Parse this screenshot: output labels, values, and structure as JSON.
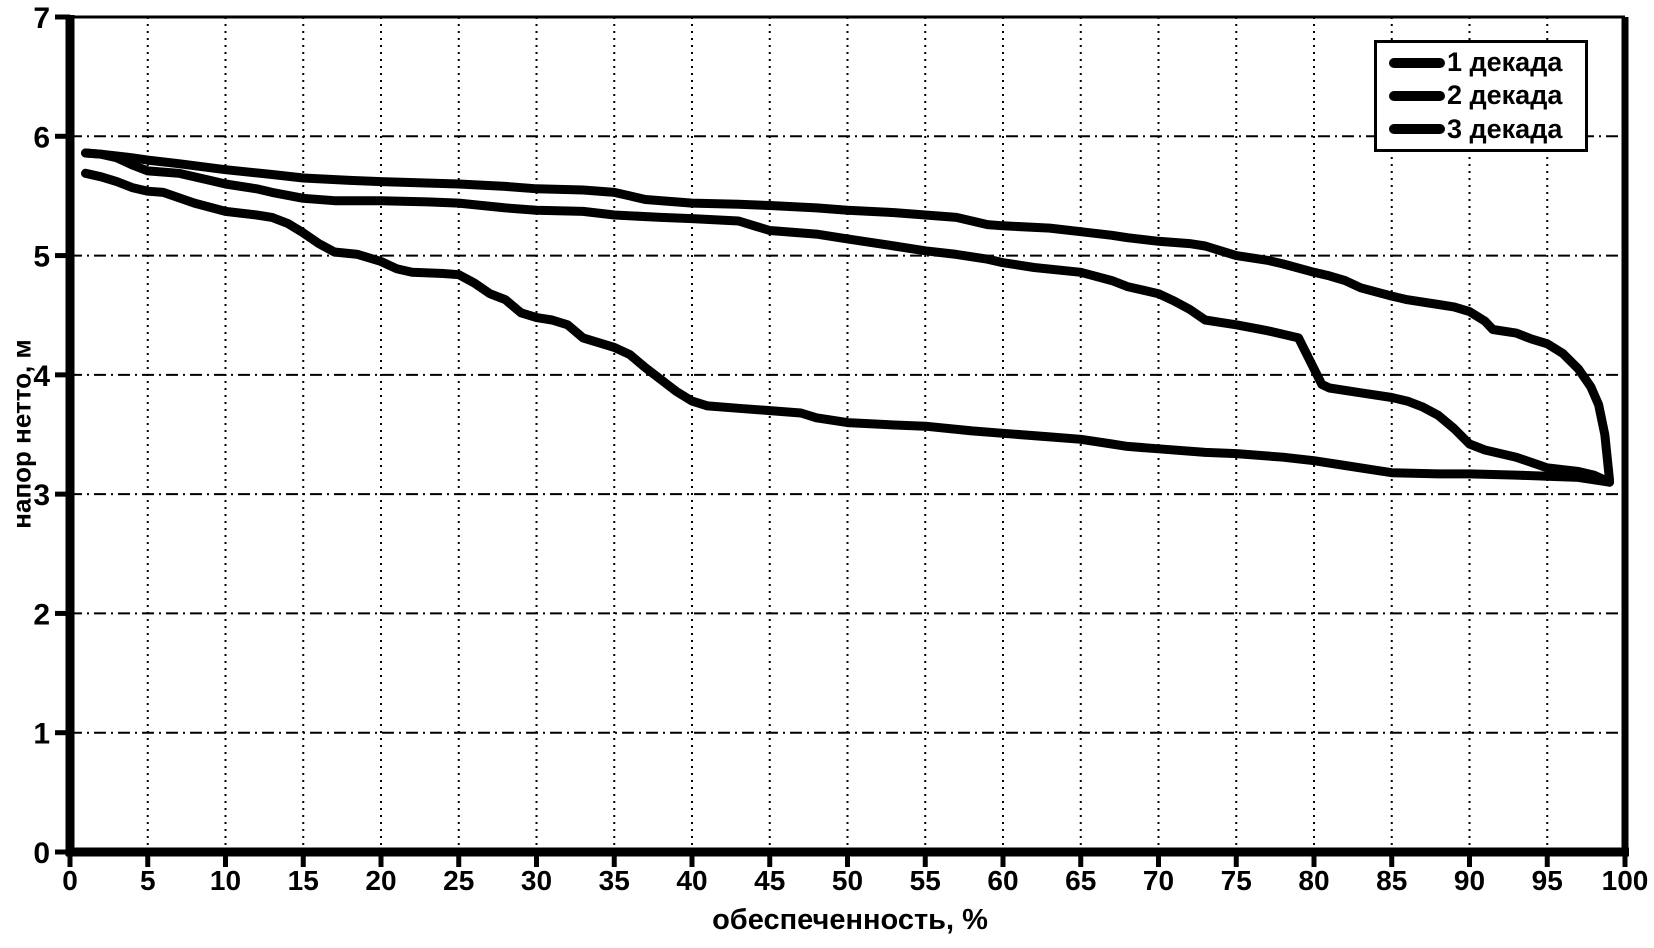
{
  "chart_data": {
    "type": "line",
    "title": "",
    "xlabel": "обеспеченность, %",
    "ylabel": "напор нетто, м",
    "xlim": [
      0,
      100
    ],
    "ylim": [
      0,
      7
    ],
    "xticks": [
      0,
      5,
      10,
      15,
      20,
      25,
      30,
      35,
      40,
      45,
      50,
      55,
      60,
      65,
      70,
      75,
      80,
      85,
      90,
      95,
      100
    ],
    "yticks": [
      0,
      1,
      2,
      3,
      4,
      5,
      6,
      7
    ],
    "grid": true,
    "legend_position": "top-right",
    "line_color": "#000000",
    "background": "#ffffff",
    "series": [
      {
        "name": "1 декада",
        "points": [
          [
            1,
            5.86
          ],
          [
            2,
            5.85
          ],
          [
            4,
            5.82
          ],
          [
            5,
            5.8
          ],
          [
            7,
            5.77
          ],
          [
            10,
            5.72
          ],
          [
            13,
            5.68
          ],
          [
            15,
            5.65
          ],
          [
            18,
            5.63
          ],
          [
            20,
            5.62
          ],
          [
            25,
            5.6
          ],
          [
            28,
            5.58
          ],
          [
            30,
            5.56
          ],
          [
            33,
            5.55
          ],
          [
            35,
            5.53
          ],
          [
            36,
            5.5
          ],
          [
            37,
            5.47
          ],
          [
            40,
            5.44
          ],
          [
            43,
            5.43
          ],
          [
            45,
            5.42
          ],
          [
            48,
            5.4
          ],
          [
            50,
            5.38
          ],
          [
            53,
            5.36
          ],
          [
            55,
            5.34
          ],
          [
            57,
            5.32
          ],
          [
            59,
            5.26
          ],
          [
            60,
            5.25
          ],
          [
            63,
            5.23
          ],
          [
            65,
            5.2
          ],
          [
            67,
            5.17
          ],
          [
            68,
            5.15
          ],
          [
            70,
            5.12
          ],
          [
            72,
            5.1
          ],
          [
            73,
            5.08
          ],
          [
            74,
            5.04
          ],
          [
            75,
            5.0
          ],
          [
            77,
            4.96
          ],
          [
            78,
            4.93
          ],
          [
            80,
            4.86
          ],
          [
            81,
            4.83
          ],
          [
            82,
            4.79
          ],
          [
            83,
            4.73
          ],
          [
            85,
            4.66
          ],
          [
            86,
            4.63
          ],
          [
            88,
            4.59
          ],
          [
            89,
            4.57
          ],
          [
            90,
            4.53
          ],
          [
            91,
            4.45
          ],
          [
            91.5,
            4.38
          ],
          [
            93,
            4.35
          ],
          [
            94,
            4.3
          ],
          [
            95,
            4.26
          ],
          [
            96,
            4.18
          ],
          [
            97,
            4.05
          ],
          [
            97.8,
            3.9
          ],
          [
            98.3,
            3.75
          ],
          [
            98.7,
            3.5
          ],
          [
            99,
            3.12
          ]
        ]
      },
      {
        "name": "2 декада",
        "points": [
          [
            1,
            5.86
          ],
          [
            2,
            5.85
          ],
          [
            3,
            5.82
          ],
          [
            4,
            5.76
          ],
          [
            5,
            5.71
          ],
          [
            7,
            5.69
          ],
          [
            9,
            5.63
          ],
          [
            10,
            5.6
          ],
          [
            12,
            5.56
          ],
          [
            13,
            5.53
          ],
          [
            15,
            5.48
          ],
          [
            17,
            5.46
          ],
          [
            20,
            5.46
          ],
          [
            23,
            5.45
          ],
          [
            25,
            5.44
          ],
          [
            28,
            5.4
          ],
          [
            30,
            5.38
          ],
          [
            33,
            5.37
          ],
          [
            35,
            5.34
          ],
          [
            38,
            5.32
          ],
          [
            40,
            5.31
          ],
          [
            43,
            5.29
          ],
          [
            44,
            5.25
          ],
          [
            45,
            5.21
          ],
          [
            48,
            5.18
          ],
          [
            50,
            5.14
          ],
          [
            53,
            5.08
          ],
          [
            55,
            5.04
          ],
          [
            57,
            5.01
          ],
          [
            59,
            4.97
          ],
          [
            60,
            4.94
          ],
          [
            62,
            4.9
          ],
          [
            65,
            4.86
          ],
          [
            67,
            4.79
          ],
          [
            68,
            4.74
          ],
          [
            70,
            4.68
          ],
          [
            71,
            4.62
          ],
          [
            72,
            4.55
          ],
          [
            73,
            4.46
          ],
          [
            74,
            4.44
          ],
          [
            75,
            4.42
          ],
          [
            77,
            4.37
          ],
          [
            78,
            4.34
          ],
          [
            79,
            4.31
          ],
          [
            80.5,
            3.92
          ],
          [
            81,
            3.89
          ],
          [
            83,
            3.85
          ],
          [
            85,
            3.81
          ],
          [
            86,
            3.78
          ],
          [
            87,
            3.73
          ],
          [
            88,
            3.66
          ],
          [
            89,
            3.55
          ],
          [
            90,
            3.42
          ],
          [
            91,
            3.37
          ],
          [
            93,
            3.31
          ],
          [
            95,
            3.22
          ],
          [
            97,
            3.19
          ],
          [
            98,
            3.16
          ],
          [
            99,
            3.1
          ]
        ]
      },
      {
        "name": "3 декада",
        "points": [
          [
            1,
            5.69
          ],
          [
            2,
            5.66
          ],
          [
            3,
            5.62
          ],
          [
            4,
            5.57
          ],
          [
            5,
            5.54
          ],
          [
            6,
            5.53
          ],
          [
            8,
            5.44
          ],
          [
            10,
            5.37
          ],
          [
            12,
            5.34
          ],
          [
            13,
            5.32
          ],
          [
            14,
            5.27
          ],
          [
            15,
            5.19
          ],
          [
            16,
            5.1
          ],
          [
            17,
            5.03
          ],
          [
            18.5,
            5.01
          ],
          [
            20,
            4.95
          ],
          [
            21,
            4.89
          ],
          [
            22,
            4.86
          ],
          [
            24,
            4.85
          ],
          [
            25,
            4.84
          ],
          [
            26,
            4.77
          ],
          [
            27,
            4.68
          ],
          [
            28,
            4.63
          ],
          [
            29,
            4.52
          ],
          [
            30,
            4.48
          ],
          [
            31,
            4.46
          ],
          [
            32,
            4.42
          ],
          [
            33,
            4.31
          ],
          [
            34,
            4.27
          ],
          [
            35,
            4.23
          ],
          [
            36,
            4.17
          ],
          [
            37,
            4.06
          ],
          [
            38,
            3.96
          ],
          [
            39,
            3.86
          ],
          [
            40,
            3.78
          ],
          [
            41,
            3.74
          ],
          [
            43,
            3.72
          ],
          [
            45,
            3.7
          ],
          [
            47,
            3.68
          ],
          [
            48,
            3.64
          ],
          [
            50,
            3.6
          ],
          [
            53,
            3.58
          ],
          [
            55,
            3.57
          ],
          [
            58,
            3.53
          ],
          [
            60,
            3.51
          ],
          [
            63,
            3.48
          ],
          [
            65,
            3.46
          ],
          [
            67,
            3.42
          ],
          [
            68,
            3.4
          ],
          [
            70,
            3.38
          ],
          [
            73,
            3.35
          ],
          [
            75,
            3.34
          ],
          [
            78,
            3.31
          ],
          [
            80,
            3.28
          ],
          [
            82,
            3.24
          ],
          [
            84,
            3.2
          ],
          [
            85,
            3.18
          ],
          [
            88,
            3.17
          ],
          [
            90,
            3.17
          ],
          [
            93,
            3.16
          ],
          [
            95,
            3.15
          ],
          [
            97,
            3.14
          ],
          [
            99,
            3.1
          ]
        ]
      }
    ]
  }
}
